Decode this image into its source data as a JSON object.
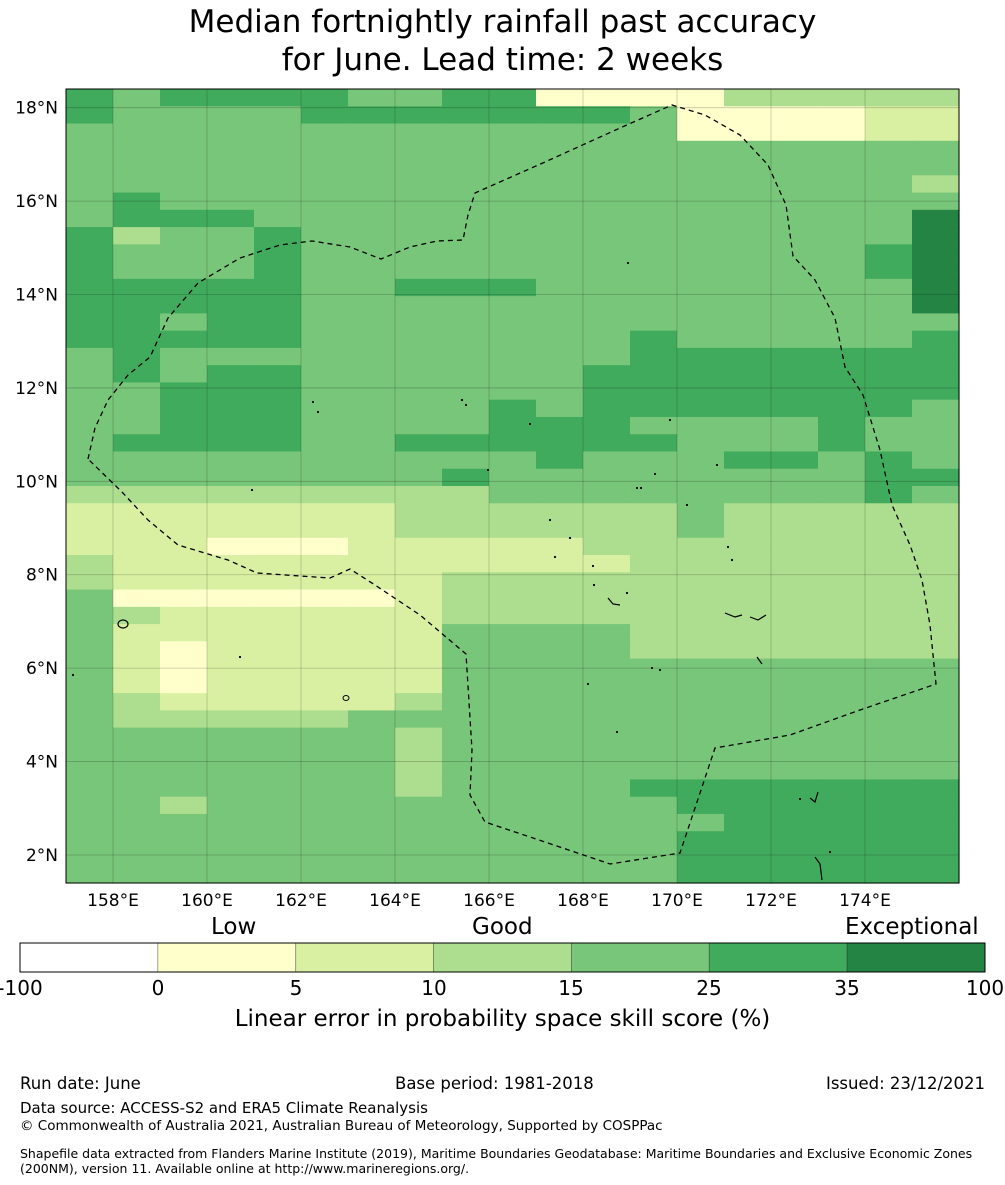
{
  "title": {
    "line1": "Median fortnightly rainfall past accuracy",
    "line2": "for June. Lead time: 2 weeks"
  },
  "map": {
    "lon_range": [
      157,
      176
    ],
    "lat_range": [
      1.4,
      18.4
    ],
    "lon_ticks": [
      "158°E",
      "160°E",
      "162°E",
      "164°E",
      "166°E",
      "168°E",
      "170°E",
      "172°E",
      "174°E"
    ],
    "lat_ticks": [
      "18°N",
      "16°N",
      "14°N",
      "12°N",
      "10°N",
      "8°N",
      "6°N",
      "4°N",
      "2°N"
    ],
    "grid": true,
    "boundary_style": "dashed",
    "grid_levels": [
      "4344443344000022222",
      "4333344444443000011",
      "3333333333333000011",
      "3333333333333333333",
      "3333333333333333333",
      "3333333333333333332",
      "3433333333333333333",
      "3444333333333333335",
      "4233433333333333335",
      "4333433333333333345",
      "4333433333333333345",
      "4444433444333333335",
      "4444433333333333335",
      "4434433333333333333",
      "4444433333334333334",
      "3433333333334444444",
      "3434433333344444444",
      "3344433333344444444",
      "3344433334344444443",
      "3344433334443333433",
      "3444433444444333433",
      "3333333333433344343",
      "3333333343333333344",
      "2222222223333333343",
      "1111111222222322222",
      "1111111222222322222",
      "1110001111122222222",
      "2111111111112222222",
      "2111111122222222222",
      "3000000122222222222",
      "3211111122222222222",
      "3111111133332222222",
      "3101111133332222222",
      "3101111133333333333",
      "3101111133333333333",
      "3211111233333333333",
      "3222223333333333333",
      "3333333233333333333",
      "3333333233333333333",
      "3333333233333333333",
      "3333333233334444444",
      "3323333333333444444",
      "3333333333333344444",
      "3333333333333444444",
      "3333333333333444444",
      "3333333333333444444"
    ]
  },
  "legend": {
    "categories": [
      "Low",
      "Good",
      "Exceptional"
    ],
    "ticks": [
      "-100",
      "0",
      "5",
      "10",
      "15",
      "25",
      "35",
      "100"
    ],
    "colors": [
      "#ffffff",
      "#ffffcc",
      "#d9f0a3",
      "#addd8e",
      "#78c679",
      "#41ab5d",
      "#238443"
    ],
    "axis_label": "Linear error in probability space skill score (%)"
  },
  "footer": {
    "run_date": "Run date: June",
    "base_period": "Base period: 1981-2018",
    "issued": "Issued: 23/12/2021",
    "data_source": "Data source: ACCESS-S2 and ERA5 Climate Reanalysis",
    "copyright": "© Commonwealth of Australia 2021, Australian Bureau of Meteorology, Supported by COSPPac",
    "shapefile": "Shapefile data extracted from Flanders Marine Institute (2019), Maritime Boundaries Geodatabase: Maritime Boundaries and Exclusive Economic Zones (200NM), version 11. Available online at http://www.marineregions.org/."
  }
}
